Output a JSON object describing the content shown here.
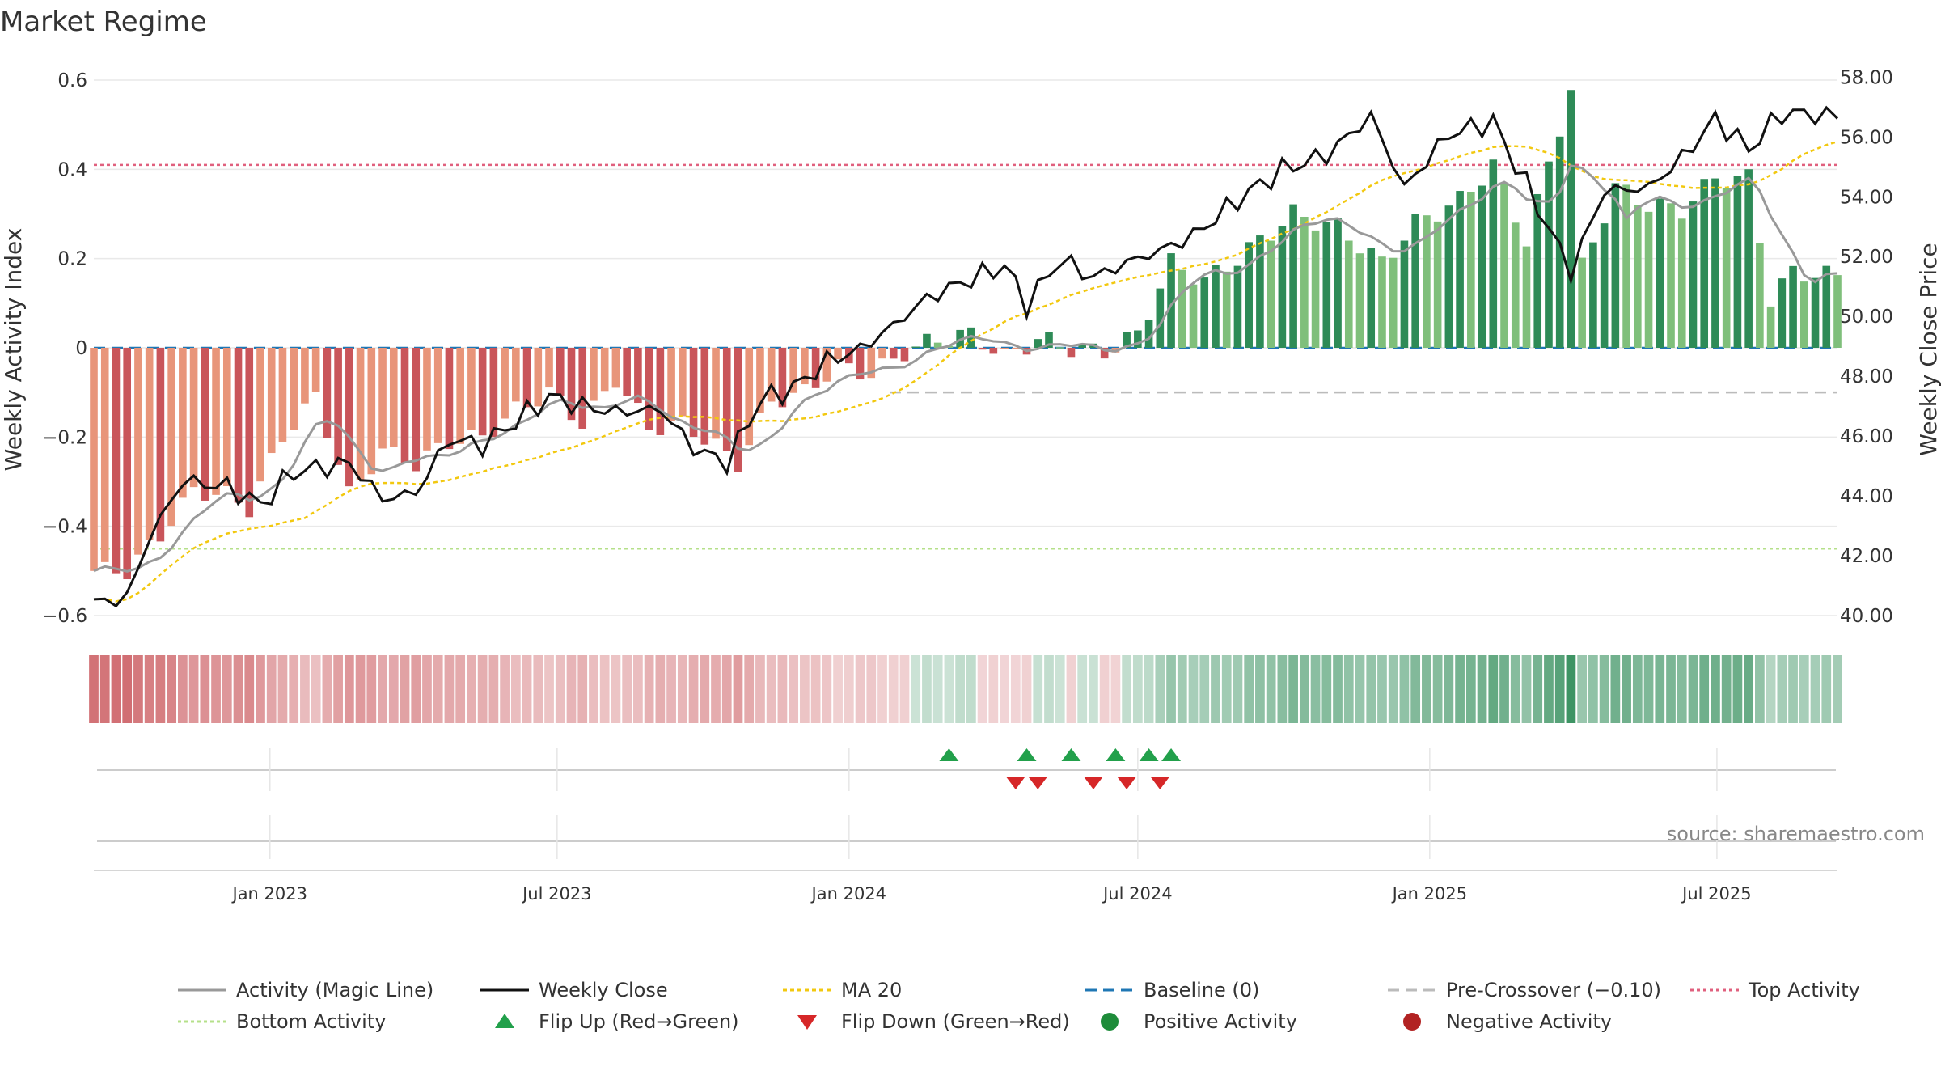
{
  "title": "Market Regime",
  "source": "source: sharemaestro.com",
  "colors": {
    "neg_dark": "#c9555a",
    "neg_light": "#e8957a",
    "pos_dark": "#2e8b57",
    "pos_light": "#7fbf7b",
    "magic_line": "#999999",
    "close": "#111111",
    "ma20": "#f2c80f",
    "baseline": "#1f77b4",
    "pre_crossover": "#bbbbbb",
    "top": "#e0607e",
    "bottom": "#b5e08a"
  },
  "chart_data": {
    "type": "bar",
    "title": "Market Regime",
    "ylabel": "Weekly Activity Index",
    "ylabel_right": "Weekly Close Price",
    "ylim": [
      -0.62,
      0.62
    ],
    "ylim_right": [
      39.7,
      58.2
    ],
    "yticks": [
      "0.6",
      "0.4",
      "0.2",
      "0",
      "−0.2",
      "−0.4",
      "−0.6"
    ],
    "yticks_right": [
      "58.00",
      "56.00",
      "54.00",
      "52.00",
      "50.00",
      "48.00",
      "46.00",
      "44.00",
      "42.00",
      "40.00"
    ],
    "x_start": "2022-09-12",
    "x_end": "2025-09-15",
    "xticks": [
      {
        "date": "2023-01-01",
        "label": "Jan 2023"
      },
      {
        "date": "2023-07-01",
        "label": "Jul 2023"
      },
      {
        "date": "2024-01-01",
        "label": "Jan 2024"
      },
      {
        "date": "2024-07-01",
        "label": "Jul 2024"
      },
      {
        "date": "2025-01-01",
        "label": "Jan 2025"
      },
      {
        "date": "2025-07-01",
        "label": "Jul 2025"
      }
    ],
    "activity_anchors": [
      [
        "2022-09-12",
        -0.5
      ],
      [
        "2022-10-03",
        -0.5
      ],
      [
        "2022-10-24",
        -0.42
      ],
      [
        "2022-11-14",
        -0.32
      ],
      [
        "2022-12-05",
        -0.33
      ],
      [
        "2022-12-19",
        -0.36
      ],
      [
        "2023-01-09",
        -0.2
      ],
      [
        "2023-01-30",
        -0.11
      ],
      [
        "2023-02-20",
        -0.33
      ],
      [
        "2023-03-13",
        -0.23
      ],
      [
        "2023-04-03",
        -0.26
      ],
      [
        "2023-04-24",
        -0.21
      ],
      [
        "2023-05-15",
        -0.2
      ],
      [
        "2023-06-05",
        -0.14
      ],
      [
        "2023-06-26",
        -0.1
      ],
      [
        "2023-07-17",
        -0.17
      ],
      [
        "2023-08-07",
        -0.07
      ],
      [
        "2023-08-28",
        -0.18
      ],
      [
        "2023-09-18",
        -0.17
      ],
      [
        "2023-10-09",
        -0.22
      ],
      [
        "2023-10-23",
        -0.26
      ],
      [
        "2023-11-13",
        -0.12
      ],
      [
        "2023-12-04",
        -0.1
      ],
      [
        "2023-12-25",
        -0.04
      ],
      [
        "2024-01-15",
        -0.06
      ],
      [
        "2024-02-05",
        -0.01
      ],
      [
        "2024-02-26",
        0.02
      ],
      [
        "2024-03-18",
        0.03
      ],
      [
        "2024-04-08",
        -0.02
      ],
      [
        "2024-04-29",
        0.02
      ],
      [
        "2024-05-20",
        0.0
      ],
      [
        "2024-06-10",
        -0.01
      ],
      [
        "2024-07-01",
        0.03
      ],
      [
        "2024-07-22",
        0.19
      ],
      [
        "2024-08-12",
        0.15
      ],
      [
        "2024-09-02",
        0.2
      ],
      [
        "2024-10-07",
        0.3
      ],
      [
        "2024-11-04",
        0.27
      ],
      [
        "2024-12-02",
        0.19
      ],
      [
        "2024-12-23",
        0.28
      ],
      [
        "2025-01-20",
        0.33
      ],
      [
        "2025-02-10",
        0.41
      ],
      [
        "2025-03-03",
        0.24
      ],
      [
        "2025-03-31",
        0.58
      ],
      [
        "2025-04-07",
        0.18
      ],
      [
        "2025-04-28",
        0.36
      ],
      [
        "2025-05-19",
        0.32
      ],
      [
        "2025-06-09",
        0.31
      ],
      [
        "2025-06-30",
        0.38
      ],
      [
        "2025-07-21",
        0.38
      ],
      [
        "2025-08-04",
        0.11
      ],
      [
        "2025-08-18",
        0.17
      ],
      [
        "2025-09-15",
        0.16
      ]
    ],
    "close_anchors": [
      [
        "2022-09-12",
        40.4
      ],
      [
        "2022-10-03",
        40.6
      ],
      [
        "2022-10-17",
        42.6
      ],
      [
        "2022-11-07",
        44.5
      ],
      [
        "2022-12-05",
        44.3
      ],
      [
        "2022-12-26",
        43.7
      ],
      [
        "2023-01-16",
        44.8
      ],
      [
        "2023-02-20",
        45.1
      ],
      [
        "2023-03-13",
        43.9
      ],
      [
        "2023-04-03",
        44.1
      ],
      [
        "2023-04-24",
        45.9
      ],
      [
        "2023-05-15",
        45.7
      ],
      [
        "2023-06-05",
        46.5
      ],
      [
        "2023-06-26",
        47.3
      ],
      [
        "2023-07-17",
        47.0
      ],
      [
        "2023-08-07",
        46.8
      ],
      [
        "2023-09-04",
        46.9
      ],
      [
        "2023-09-25",
        45.6
      ],
      [
        "2023-10-16",
        45.1
      ],
      [
        "2023-11-06",
        47.2
      ],
      [
        "2023-11-27",
        47.6
      ],
      [
        "2023-12-18",
        48.5
      ],
      [
        "2024-01-08",
        48.9
      ],
      [
        "2024-01-29",
        49.7
      ],
      [
        "2024-02-19",
        50.6
      ],
      [
        "2024-03-11",
        51.1
      ],
      [
        "2024-04-08",
        51.7
      ],
      [
        "2024-04-22",
        50.4
      ],
      [
        "2024-05-13",
        51.9
      ],
      [
        "2024-06-03",
        51.3
      ],
      [
        "2024-06-24",
        51.8
      ],
      [
        "2024-07-15",
        52.2
      ],
      [
        "2024-08-05",
        52.7
      ],
      [
        "2024-09-02",
        53.9
      ],
      [
        "2024-09-30",
        54.9
      ],
      [
        "2024-10-28",
        55.4
      ],
      [
        "2024-11-25",
        56.7
      ],
      [
        "2024-12-16",
        54.3
      ],
      [
        "2025-01-13",
        56.1
      ],
      [
        "2025-02-10",
        56.5
      ],
      [
        "2025-03-03",
        54.4
      ],
      [
        "2025-03-31",
        51.5
      ],
      [
        "2025-04-21",
        54.2
      ],
      [
        "2025-05-19",
        54.3
      ],
      [
        "2025-06-09",
        55.3
      ],
      [
        "2025-06-30",
        56.6
      ],
      [
        "2025-07-21",
        55.6
      ],
      [
        "2025-08-11",
        56.8
      ],
      [
        "2025-09-15",
        56.7
      ]
    ],
    "flip_up_dates": [
      "2024-03-04",
      "2024-04-22",
      "2024-05-20",
      "2024-06-17",
      "2024-07-08",
      "2024-07-22"
    ],
    "flip_down_dates": [
      "2024-04-15",
      "2024-04-29",
      "2024-06-03",
      "2024-06-24",
      "2024-07-15"
    ],
    "reference_lines": {
      "baseline": 0,
      "pre_crossover": -0.1,
      "top_activity": 0.41,
      "bottom_activity": -0.45
    },
    "ma20_window": 20,
    "legend": [
      {
        "key": "magic",
        "label": "Activity (Magic Line)"
      },
      {
        "key": "close",
        "label": "Weekly Close"
      },
      {
        "key": "ma20",
        "label": "MA 20"
      },
      {
        "key": "baseline",
        "label": "Baseline (0)"
      },
      {
        "key": "pre",
        "label": "Pre-Crossover (−0.10)"
      },
      {
        "key": "top",
        "label": "Top Activity"
      },
      {
        "key": "bottom",
        "label": "Bottom Activity"
      },
      {
        "key": "flipup",
        "label": "Flip Up (Red→Green)"
      },
      {
        "key": "flipdown",
        "label": "Flip Down (Green→Red)"
      },
      {
        "key": "pos",
        "label": "Positive Activity"
      },
      {
        "key": "neg",
        "label": "Negative Activity"
      }
    ]
  }
}
